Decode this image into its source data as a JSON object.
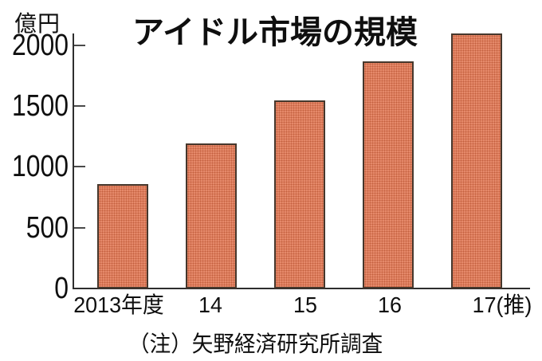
{
  "note": "（注）矢野経済研究所調査",
  "chart_data": {
    "type": "bar",
    "title": "アイドル市場の規模",
    "unit": "億円",
    "ylabel": "億円",
    "xlabel": "",
    "categories": [
      "2013年度",
      "14",
      "15",
      "16",
      "17(推)"
    ],
    "values": [
      860,
      1190,
      1545,
      1870,
      2100
    ],
    "yticks": [
      0,
      500,
      1000,
      1500,
      2000
    ],
    "ylim": [
      0,
      2100
    ],
    "grid": false,
    "legend_position": "none",
    "bar_color": "#e5896a",
    "bar_pattern_color": "#c4603e",
    "bar_border_color": "#46372c",
    "axis_color": "#2e2e2e",
    "text_color": "#0f0f0f"
  }
}
